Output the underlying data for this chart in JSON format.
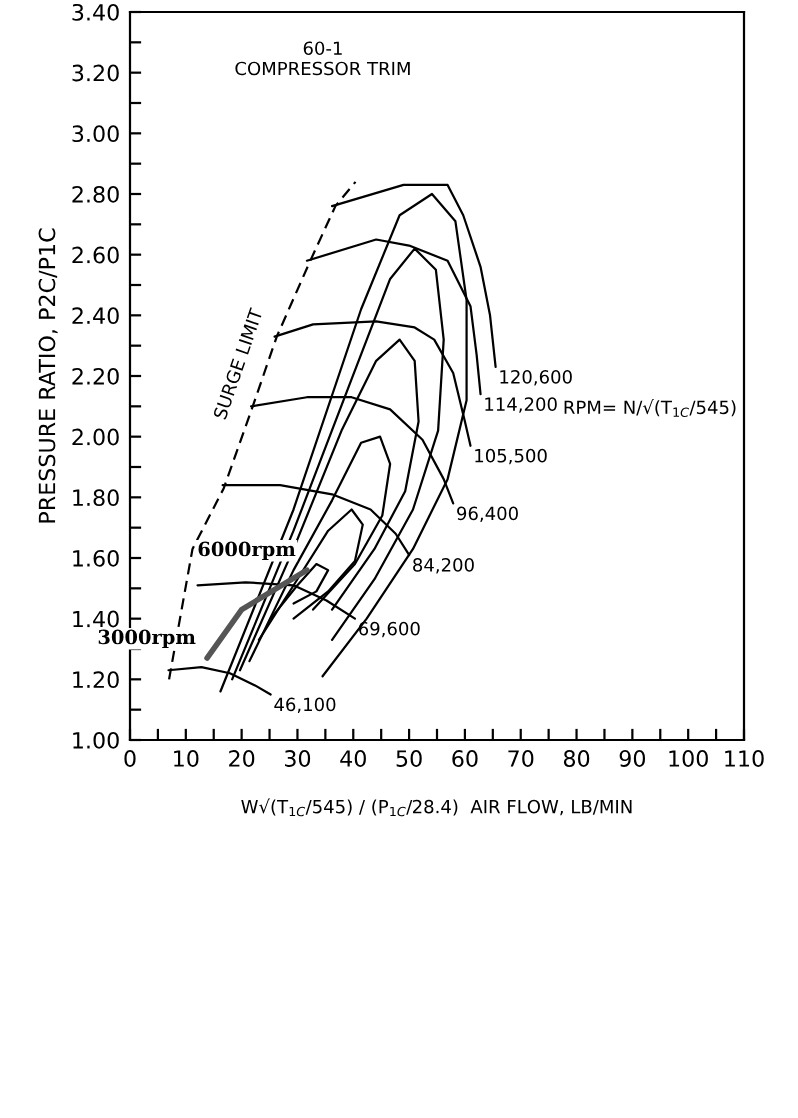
{
  "chart_data": {
    "type": "line",
    "xlabel": "W√(T$_{1C}$/545) / (P$_{1C}$/28.4)  AIR FLOW, LB/MIN",
    "ylabel": "PRESSURE RATIO, P2C/P1C",
    "xlim": [
      0,
      110
    ],
    "xticks": [
      0,
      {
        "value": 5,
        "label": null
      },
      10,
      {
        "value": 15,
        "label": null
      },
      20,
      {
        "value": 25,
        "label": null
      },
      30,
      {
        "value": 35,
        "label": null
      },
      40,
      {
        "value": 45,
        "label": null
      },
      50,
      {
        "value": 55,
        "label": null
      },
      60,
      {
        "value": 65,
        "label": null
      },
      70,
      {
        "value": 75,
        "label": null
      },
      80,
      {
        "value": 85,
        "label": null
      },
      90,
      {
        "value": 95,
        "label": null
      },
      100,
      {
        "value": 105,
        "label": null
      },
      110
    ],
    "ylim": [
      1.0,
      3.4
    ],
    "yticks": [
      {
        "value": 1.0,
        "label": "1.00"
      },
      {
        "value": 1.1,
        "label": null
      },
      {
        "value": 1.2,
        "label": "1.20"
      },
      {
        "value": 1.3,
        "label": null
      },
      {
        "value": 1.4,
        "label": "1.40"
      },
      {
        "value": 1.5,
        "label": null
      },
      {
        "value": 1.6,
        "label": "1.60"
      },
      {
        "value": 1.7,
        "label": null
      },
      {
        "value": 1.8,
        "label": "1.80"
      },
      {
        "value": 1.9,
        "label": null
      },
      {
        "value": 2.0,
        "label": "2.00"
      },
      {
        "value": 2.1,
        "label": null
      },
      {
        "value": 2.2,
        "label": "2.20"
      },
      {
        "value": 2.3,
        "label": null
      },
      {
        "value": 2.4,
        "label": "2.40"
      },
      {
        "value": 2.5,
        "label": null
      },
      {
        "value": 2.6,
        "label": "2.60"
      },
      {
        "value": 2.7,
        "label": null
      },
      {
        "value": 2.8,
        "label": "2.80"
      },
      {
        "value": 2.9,
        "label": null
      },
      {
        "value": 3.0,
        "label": "3.00"
      },
      {
        "value": 3.1,
        "label": null
      },
      {
        "value": 3.2,
        "label": "3.20"
      },
      {
        "value": 3.3,
        "label": null
      },
      {
        "value": 3.4,
        "label": "3.40"
      }
    ],
    "grid": false,
    "series": [
      {
        "name": "SURGE LIMIT",
        "color": "#000000",
        "line_style": "dashed",
        "x": [
          7.0,
          11.2,
          16.8,
          21.8,
          26.3,
          32.3,
          36.8,
          40.4
        ],
        "values": [
          1.2,
          1.63,
          1.83,
          2.09,
          2.33,
          2.58,
          2.76,
          2.84
        ]
      },
      {
        "name": "46,100",
        "color": "#000000",
        "x": [
          6.9,
          12.8,
          17.9,
          22.4,
          25.2
        ],
        "values": [
          1.23,
          1.24,
          1.22,
          1.18,
          1.15
        ]
      },
      {
        "name": "69,600",
        "color": "#000000",
        "x": [
          12.1,
          20.7,
          29.3,
          35.2,
          40.3
        ],
        "values": [
          1.51,
          1.52,
          1.51,
          1.46,
          1.4
        ]
      },
      {
        "name": "84,200",
        "color": "#000000",
        "x": [
          16.6,
          26.9,
          36.2,
          43.1,
          47.6,
          50.0
        ],
        "values": [
          1.84,
          1.84,
          1.81,
          1.76,
          1.68,
          1.61
        ]
      },
      {
        "name": "96,400",
        "color": "#000000",
        "x": [
          21.7,
          31.7,
          39.7,
          46.6,
          52.4,
          56.2,
          57.9
        ],
        "values": [
          2.1,
          2.13,
          2.13,
          2.09,
          1.99,
          1.86,
          1.78
        ]
      },
      {
        "name": "105,500",
        "color": "#000000",
        "x": [
          25.9,
          32.8,
          44.1,
          51.0,
          54.5,
          57.9,
          60.0,
          61.0
        ],
        "values": [
          2.33,
          2.37,
          2.38,
          2.36,
          2.32,
          2.21,
          2.05,
          1.97
        ]
      },
      {
        "name": "114,200",
        "color": "#000000",
        "x": [
          31.7,
          44.1,
          50.0,
          56.9,
          61.0,
          62.1,
          62.8
        ],
        "values": [
          2.58,
          2.65,
          2.63,
          2.58,
          2.43,
          2.27,
          2.14
        ]
      },
      {
        "name": "120,600",
        "color": "#000000",
        "x": [
          36.2,
          49.0,
          56.9,
          59.7,
          62.8,
          64.5,
          65.5
        ],
        "values": [
          2.76,
          2.83,
          2.83,
          2.73,
          2.56,
          2.4,
          2.23
        ]
      },
      {
        "color": "#000000",
        "x": [
          16.2,
          29.3,
          41.4,
          48.3,
          54.1,
          58.3,
          60.3,
          60.3,
          56.9,
          50.7,
          42.4,
          34.5
        ],
        "values": [
          1.16,
          1.76,
          2.42,
          2.73,
          2.8,
          2.71,
          2.45,
          2.12,
          1.86,
          1.63,
          1.4,
          1.21
        ]
      },
      {
        "color": "#000000",
        "x": [
          18.3,
          29.3,
          39.7,
          46.6,
          51.0,
          54.8,
          56.2,
          55.2,
          50.7,
          43.8,
          36.2
        ],
        "values": [
          1.2,
          1.69,
          2.19,
          2.52,
          2.62,
          2.55,
          2.32,
          2.02,
          1.76,
          1.53,
          1.33
        ]
      },
      {
        "color": "#000000",
        "x": [
          19.7,
          29.3,
          37.9,
          44.1,
          48.3,
          51.0,
          51.7,
          49.3,
          43.8,
          36.2
        ],
        "values": [
          1.23,
          1.63,
          2.02,
          2.25,
          2.32,
          2.25,
          2.05,
          1.82,
          1.63,
          1.43
        ]
      },
      {
        "color": "#000000",
        "x": [
          21.4,
          29.3,
          36.2,
          41.4,
          44.8,
          46.6,
          45.2,
          40.3,
          32.8
        ],
        "values": [
          1.26,
          1.56,
          1.79,
          1.98,
          2.0,
          1.91,
          1.74,
          1.58,
          1.43
        ]
      },
      {
        "color": "#000000",
        "x": [
          23.1,
          30.0,
          35.5,
          39.7,
          41.7,
          40.3,
          35.5,
          29.3
        ],
        "values": [
          1.33,
          1.53,
          1.69,
          1.76,
          1.71,
          1.59,
          1.49,
          1.4
        ]
      },
      {
        "color": "#000000",
        "x": [
          25.2,
          30.0,
          33.4,
          35.5,
          33.4,
          29.3
        ],
        "values": [
          1.4,
          1.51,
          1.58,
          1.56,
          1.49,
          1.45
        ]
      },
      {
        "color": "#555555",
        "x": [
          13.8,
          20.0,
          31.7
        ],
        "values": [
          1.27,
          1.43,
          1.56
        ]
      }
    ],
    "annotations": [
      "60-1\nCOMPRESSOR TRIM",
      "RPM= N/√(T$_{1C}$/545)",
      {
        "text": "3000rpm",
        "x": 13.8,
        "y": 1.27
      },
      {
        "text": "6000rpm",
        "x": 31.7,
        "y": 1.56
      }
    ]
  }
}
